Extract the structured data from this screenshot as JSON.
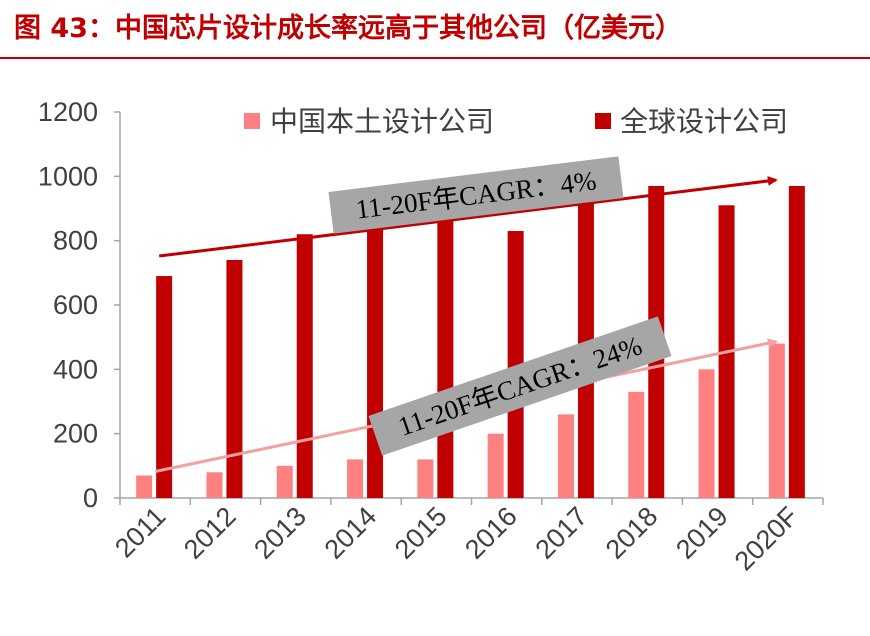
{
  "title": "图 43：中国芯片设计成长率远高于其他公司（亿美元）",
  "colors": {
    "title": "#c00000",
    "china_series": "#ff8080",
    "global_series": "#c00000",
    "annotation_box": "#a6a6a6",
    "china_arrow": "#f4a0a0",
    "global_arrow": "#c00000"
  },
  "chart_data": {
    "type": "bar",
    "categories": [
      "2011",
      "2012",
      "2013",
      "2014",
      "2015",
      "2016",
      "2017",
      "2018",
      "2019",
      "2020F"
    ],
    "series": [
      {
        "name": "中国本土设计公司",
        "values": [
          70,
          80,
          100,
          120,
          120,
          200,
          260,
          330,
          400,
          480
        ]
      },
      {
        "name": "全球设计公司",
        "values": [
          690,
          740,
          820,
          860,
          870,
          830,
          920,
          970,
          910,
          970
        ]
      }
    ],
    "ylim": [
      0,
      1200
    ],
    "yticks": [
      "0",
      "200",
      "400",
      "600",
      "800",
      "1000",
      "1200"
    ],
    "grid": false,
    "legend": "top",
    "annotations": [
      {
        "text": "11-20F年CAGR：4%",
        "series": "全球设计公司",
        "from": [
          "2011",
          690
        ],
        "to": [
          "2020F",
          970
        ]
      },
      {
        "text": "11-20F年CAGR：24%",
        "series": "中国本土设计公司",
        "from": [
          "2011",
          70
        ],
        "to": [
          "2020F",
          480
        ]
      }
    ]
  }
}
